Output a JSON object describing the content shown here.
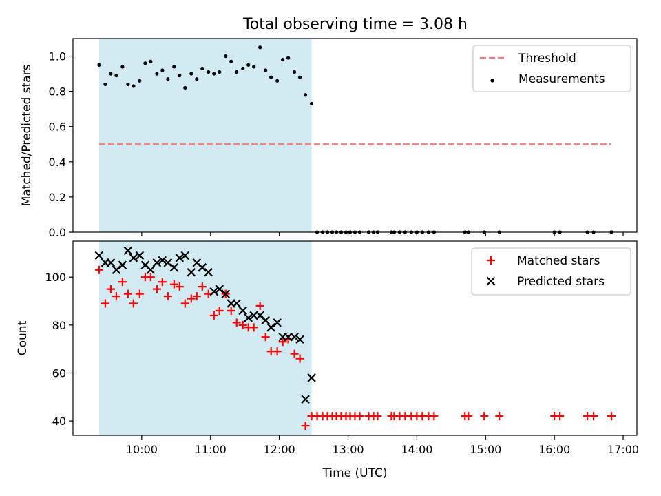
{
  "title": "Total observing time = 3.08 h",
  "chart_data": [
    {
      "type": "scatter",
      "panel": "top",
      "ylabel": "Matched/Predicted stars",
      "ylim": [
        0,
        1.1
      ],
      "xlim": [
        9.0,
        17.2
      ],
      "yticks": [
        0.0,
        0.2,
        0.4,
        0.6,
        0.8,
        1.0
      ],
      "ytick_labels": [
        "0.0",
        "0.2",
        "0.4",
        "0.6",
        "0.8",
        "1.0"
      ],
      "shaded_region": [
        9.38,
        12.47
      ],
      "shade_color": "#add8e6",
      "legend": {
        "position": "top-right",
        "entries": [
          "Threshold",
          "Measurements"
        ]
      },
      "series": [
        {
          "name": "Threshold",
          "kind": "dashed-line",
          "color": "#f47c7c",
          "x": [
            9.38,
            16.83
          ],
          "y": [
            0.5,
            0.5
          ]
        },
        {
          "name": "Measurements",
          "kind": "points",
          "color": "#000000",
          "x": [
            9.38,
            9.47,
            9.55,
            9.63,
            9.72,
            9.8,
            9.88,
            9.97,
            10.05,
            10.13,
            10.22,
            10.3,
            10.38,
            10.47,
            10.55,
            10.63,
            10.72,
            10.8,
            10.88,
            10.97,
            11.05,
            11.13,
            11.22,
            11.3,
            11.38,
            11.47,
            11.55,
            11.63,
            11.72,
            11.8,
            11.88,
            11.97,
            12.05,
            12.13,
            12.22,
            12.3,
            12.38,
            12.47,
            12.55,
            12.63,
            12.7,
            12.77,
            12.83,
            12.9,
            12.97,
            13.03,
            13.1,
            13.17,
            13.3,
            13.37,
            13.43,
            13.63,
            13.67,
            13.75,
            13.83,
            13.92,
            14.0,
            14.08,
            14.17,
            14.25,
            14.7,
            14.75,
            14.98,
            15.2,
            16.0,
            16.08,
            16.48,
            16.57,
            16.83
          ],
          "y": [
            0.95,
            0.84,
            0.9,
            0.89,
            0.94,
            0.84,
            0.83,
            0.86,
            0.96,
            0.97,
            0.9,
            0.92,
            0.87,
            0.94,
            0.89,
            0.82,
            0.9,
            0.87,
            0.93,
            0.91,
            0.9,
            0.91,
            1.0,
            0.97,
            0.91,
            0.93,
            0.95,
            0.94,
            1.05,
            0.92,
            0.88,
            0.86,
            0.98,
            0.99,
            0.91,
            0.88,
            0.78,
            0.73,
            0,
            0,
            0,
            0,
            0,
            0,
            0,
            0,
            0,
            0,
            0,
            0,
            0,
            0,
            0,
            0,
            0,
            0,
            0,
            0,
            0,
            0,
            0,
            0,
            0,
            0,
            0,
            0,
            0,
            0,
            0
          ]
        }
      ]
    },
    {
      "type": "scatter",
      "panel": "bottom",
      "ylabel": "Count",
      "xlabel": "Time (UTC)",
      "ylim": [
        34,
        115
      ],
      "xlim": [
        9.0,
        17.2
      ],
      "yticks": [
        40,
        60,
        80,
        100
      ],
      "ytick_labels": [
        "40",
        "60",
        "80",
        "100"
      ],
      "xticks": [
        10,
        11,
        12,
        13,
        14,
        15,
        16,
        17
      ],
      "xtick_labels": [
        "10:00",
        "11:00",
        "12:00",
        "13:00",
        "14:00",
        "15:00",
        "16:00",
        "17:00"
      ],
      "shaded_region": [
        9.38,
        12.47
      ],
      "shade_color": "#add8e6",
      "legend": {
        "position": "top-right",
        "entries": [
          "Matched stars",
          "Predicted stars"
        ]
      },
      "series": [
        {
          "name": "Matched stars",
          "kind": "plus-markers",
          "color": "#ff0000",
          "x": [
            9.38,
            9.47,
            9.55,
            9.63,
            9.72,
            9.8,
            9.88,
            9.97,
            10.05,
            10.13,
            10.22,
            10.3,
            10.38,
            10.47,
            10.55,
            10.63,
            10.72,
            10.8,
            10.88,
            10.97,
            11.05,
            11.13,
            11.22,
            11.3,
            11.38,
            11.47,
            11.55,
            11.63,
            11.72,
            11.8,
            11.88,
            11.97,
            12.05,
            12.13,
            12.22,
            12.3,
            12.38,
            12.47,
            12.55,
            12.63,
            12.7,
            12.77,
            12.83,
            12.9,
            12.97,
            13.03,
            13.1,
            13.17,
            13.3,
            13.37,
            13.43,
            13.63,
            13.67,
            13.75,
            13.83,
            13.92,
            14.0,
            14.08,
            14.17,
            14.25,
            14.7,
            14.75,
            14.98,
            15.2,
            16.0,
            16.08,
            16.48,
            16.57,
            16.83
          ],
          "y": [
            103,
            89,
            95,
            92,
            98,
            93,
            89,
            93,
            100,
            100,
            95,
            98,
            92,
            97,
            96,
            89,
            91,
            92,
            96,
            93,
            84,
            86,
            93,
            86,
            81,
            80,
            79,
            79,
            88,
            75,
            69,
            69,
            73,
            74,
            68,
            66,
            38,
            42,
            42,
            42,
            42,
            42,
            42,
            42,
            42,
            42,
            42,
            42,
            42,
            42,
            42,
            42,
            42,
            42,
            42,
            42,
            42,
            42,
            42,
            42,
            42,
            42,
            42,
            42,
            42,
            42,
            42,
            42,
            42
          ]
        },
        {
          "name": "Predicted stars",
          "kind": "x-markers",
          "color": "#000000",
          "x": [
            9.38,
            9.47,
            9.55,
            9.63,
            9.72,
            9.8,
            9.88,
            9.97,
            10.05,
            10.13,
            10.22,
            10.3,
            10.38,
            10.47,
            10.55,
            10.63,
            10.72,
            10.8,
            10.88,
            10.97,
            11.05,
            11.13,
            11.22,
            11.3,
            11.38,
            11.47,
            11.55,
            11.63,
            11.72,
            11.8,
            11.88,
            11.97,
            12.05,
            12.13,
            12.22,
            12.3,
            12.38,
            12.47
          ],
          "y": [
            109,
            106,
            106,
            103,
            105,
            111,
            108,
            109,
            105,
            103,
            106,
            107,
            106,
            104,
            108,
            109,
            102,
            106,
            104,
            102,
            94,
            95,
            93,
            89,
            89,
            86,
            83,
            84,
            84,
            82,
            79,
            81,
            75,
            75,
            75,
            74,
            49,
            58
          ]
        }
      ]
    }
  ]
}
